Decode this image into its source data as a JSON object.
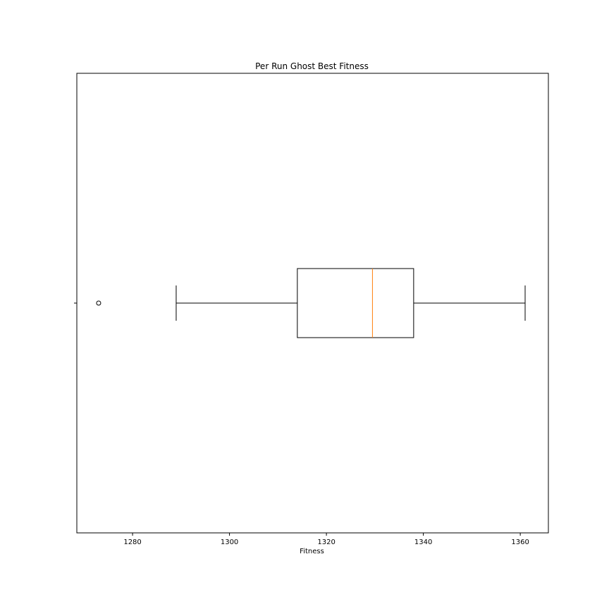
{
  "chart_data": {
    "type": "boxplot",
    "orientation": "horizontal",
    "title": "Per Run Ghost Best Fitness",
    "xlabel": "Fitness",
    "ylabel": "",
    "xlim": [
      1268.5,
      1365.8
    ],
    "xticks": [
      1280,
      1300,
      1320,
      1340,
      1360
    ],
    "xtick_labels": [
      "1280",
      "1300",
      "1320",
      "1340",
      "1360"
    ],
    "grid": false,
    "box": {
      "whisker_low": 1289,
      "q1": 1314,
      "median": 1329.5,
      "q3": 1338,
      "whisker_high": 1361,
      "outliers": [
        1273
      ]
    },
    "colors": {
      "box": "#000000",
      "median": "#ff7f0e",
      "background": "#ffffff"
    }
  }
}
